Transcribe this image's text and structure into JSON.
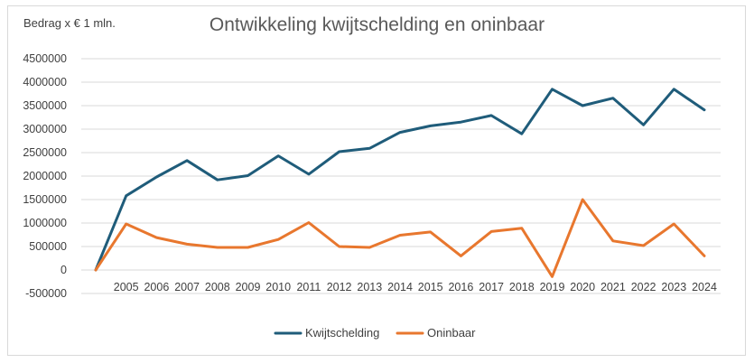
{
  "chart_data": {
    "type": "line",
    "title": "Ontwikkeling kwijtschelding en oninbaar",
    "unit_label": "Bedrag x  € 1 mln.",
    "xlabel": "",
    "ylabel": "",
    "x": [
      "",
      "2005",
      "2006",
      "2007",
      "2008",
      "2009",
      "2010",
      "2011",
      "2012",
      "2013",
      "2014",
      "2015",
      "2016",
      "2017",
      "2018",
      "2019",
      "2020",
      "2021",
      "2022",
      "2023",
      "2024"
    ],
    "ylim": [
      -500000,
      4500000
    ],
    "yticks": [
      -500000,
      0,
      500000,
      1000000,
      1500000,
      2000000,
      2500000,
      3000000,
      3500000,
      4000000,
      4500000
    ],
    "ytick_labels": [
      "-500000",
      "0",
      "500000",
      "1000000",
      "1500000",
      "2000000",
      "2500000",
      "3000000",
      "3500000",
      "4000000",
      "4500000"
    ],
    "grid": true,
    "legend_position": "bottom",
    "series": [
      {
        "name": "Kwijtschelding",
        "color": "#1f5c7a",
        "values": [
          0,
          1580000,
          1980000,
          2330000,
          1920000,
          2010000,
          2430000,
          2040000,
          2520000,
          2590000,
          2930000,
          3070000,
          3150000,
          3290000,
          2900000,
          3850000,
          3500000,
          3660000,
          3090000,
          3850000,
          3410000
        ]
      },
      {
        "name": "Oninbaar",
        "color": "#e8772e",
        "values": [
          0,
          980000,
          690000,
          550000,
          480000,
          480000,
          650000,
          1010000,
          500000,
          480000,
          740000,
          810000,
          300000,
          820000,
          890000,
          -140000,
          1500000,
          620000,
          520000,
          980000,
          300000
        ]
      }
    ]
  }
}
